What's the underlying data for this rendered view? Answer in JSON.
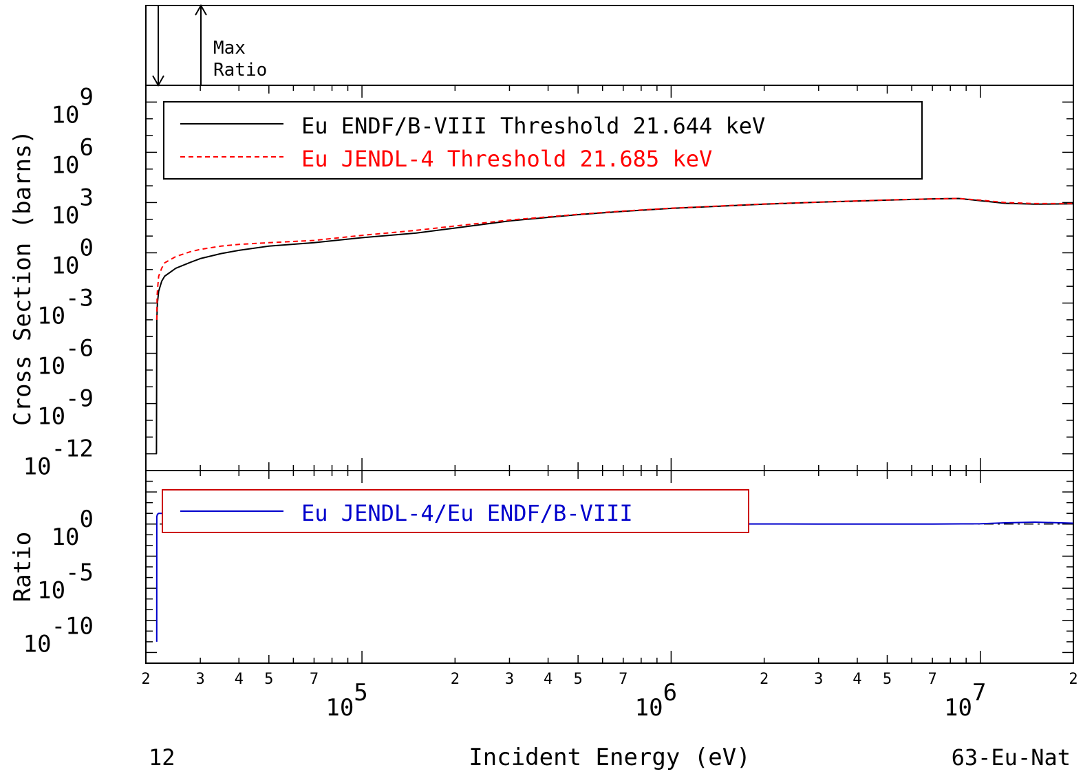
{
  "header": {
    "max_label": "Max",
    "ratio_label": "Ratio"
  },
  "footer": {
    "left_label": "12",
    "xlabel": "Incident Energy (eV)",
    "right_label": "63-Eu-Nat"
  },
  "chart_data": [
    {
      "type": "line",
      "ylabel": "Cross Section (barns)",
      "xscale": "log",
      "yscale": "log",
      "xlim": [
        20000,
        20000000
      ],
      "ylim": [
        1e-13,
        10000000000.0
      ],
      "y_ticks": [
        {
          "base": "10",
          "exp": "9",
          "value": 1000000000.0
        },
        {
          "base": "10",
          "exp": "6",
          "value": 1000000.0
        },
        {
          "base": "10",
          "exp": "3",
          "value": 1000.0
        },
        {
          "base": "10",
          "exp": "0",
          "value": 1
        },
        {
          "base": "10",
          "exp": "-3",
          "value": 0.001
        },
        {
          "base": "10",
          "exp": "-6",
          "value": 1e-06
        },
        {
          "base": "10",
          "exp": "-9",
          "value": 1e-09
        },
        {
          "base": "10",
          "exp": "-12",
          "value": 1e-12
        }
      ],
      "legend_position": "top-left",
      "series": [
        {
          "name": "Eu ENDF/B-VIII Threshold 21.644 keV",
          "color": "#000000",
          "dash": "solid",
          "x": [
            21644,
            21700,
            21800,
            22000,
            22500,
            23000,
            25000,
            28000,
            30000,
            35000,
            40000,
            50000,
            70000,
            100000,
            150000,
            200000,
            300000,
            400000,
            500000,
            700000,
            1000000,
            2000000,
            3000000,
            5000000,
            7000000,
            8500000,
            10000000,
            12000000,
            15000000,
            20000000
          ],
          "y": [
            1e-12,
            0.0001,
            0.001,
            0.005,
            0.02,
            0.04,
            0.12,
            0.28,
            0.45,
            0.9,
            1.4,
            2.5,
            4,
            8,
            15,
            30,
            80,
            130,
            190,
            300,
            450,
            800,
            1050,
            1400,
            1650,
            1750,
            1300,
            900,
            800,
            850
          ]
        },
        {
          "name": "Eu JENDL-4 Threshold 21.685 keV",
          "color": "#ff0000",
          "dash": "dashed",
          "x": [
            21685,
            21750,
            21850,
            22000,
            22500,
            23000,
            25000,
            28000,
            30000,
            35000,
            40000,
            50000,
            70000,
            100000,
            150000,
            200000,
            300000,
            400000,
            500000,
            700000,
            1000000,
            2000000,
            3000000,
            5000000,
            7000000,
            8500000,
            10000000,
            12000000,
            15000000,
            20000000
          ],
          "y": [
            0.0001,
            0.003,
            0.01,
            0.04,
            0.12,
            0.25,
            0.6,
            1.2,
            1.6,
            2.5,
            3.2,
            4,
            5.5,
            11,
            22,
            40,
            90,
            140,
            200,
            310,
            460,
            820,
            1060,
            1420,
            1660,
            1760,
            1400,
            1000,
            870,
            880
          ]
        }
      ]
    },
    {
      "type": "line",
      "ylabel": "Ratio",
      "xscale": "log",
      "yscale": "log",
      "xlim": [
        20000,
        20000000
      ],
      "ylim": [
        1e-13,
        100000.0
      ],
      "y_ticks": [
        {
          "base": "10",
          "exp": "0",
          "value": 1
        },
        {
          "base": "10",
          "exp": "-5",
          "value": 1e-05
        },
        {
          "base": "10",
          "exp": "-10",
          "value": 1e-10
        }
      ],
      "reference_line": 1,
      "legend_position": "top-left",
      "series": [
        {
          "name": "Eu JENDL-4/Eu ENDF/B-VIII",
          "color": "#0000cc",
          "dash": "solid",
          "x": [
            21685,
            21700,
            21800,
            22000,
            25000,
            30000,
            35000,
            40000,
            50000,
            70000,
            100000,
            150000,
            200000,
            300000,
            500000,
            1000000,
            3000000,
            7000000,
            10000000,
            12000000,
            15000000,
            20000000
          ],
          "y": [
            1e-11,
            5,
            8,
            10,
            10,
            10,
            7,
            4,
            2,
            1.4,
            1.8,
            2,
            1.6,
            1.2,
            1.05,
            1.02,
            1.01,
            1.0,
            1.05,
            1.3,
            1.5,
            1.2
          ]
        }
      ]
    }
  ],
  "x_axis": {
    "major_ticks": [
      {
        "value": 100000,
        "base": "10",
        "exp": "5"
      },
      {
        "value": 1000000,
        "base": "10",
        "exp": "6"
      },
      {
        "value": 10000000,
        "base": "10",
        "exp": "7"
      }
    ],
    "minor_labels": [
      {
        "value": 20000,
        "label": "2"
      },
      {
        "value": 30000,
        "label": "3"
      },
      {
        "value": 40000,
        "label": "4"
      },
      {
        "value": 50000,
        "label": "5"
      },
      {
        "value": 70000,
        "label": "7"
      },
      {
        "value": 200000,
        "label": "2"
      },
      {
        "value": 300000,
        "label": "3"
      },
      {
        "value": 400000,
        "label": "4"
      },
      {
        "value": 500000,
        "label": "5"
      },
      {
        "value": 700000,
        "label": "7"
      },
      {
        "value": 2000000,
        "label": "2"
      },
      {
        "value": 3000000,
        "label": "3"
      },
      {
        "value": 4000000,
        "label": "4"
      },
      {
        "value": 5000000,
        "label": "5"
      },
      {
        "value": 7000000,
        "label": "7"
      },
      {
        "value": 20000000,
        "label": "2"
      }
    ]
  }
}
